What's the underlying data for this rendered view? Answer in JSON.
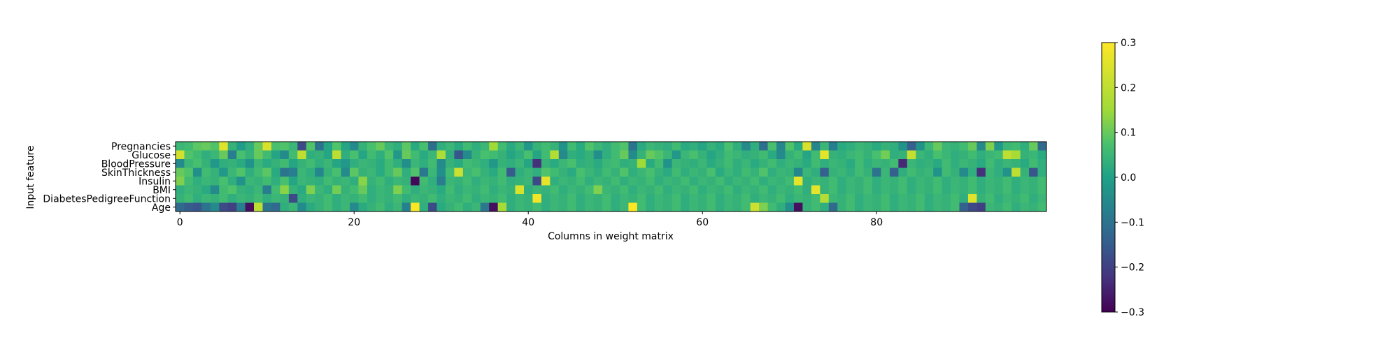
{
  "chart_data": {
    "type": "heatmap",
    "title": "",
    "xlabel": "Columns in weight matrix",
    "ylabel": "Input feature",
    "rows": [
      "Pregnancies",
      "Glucose",
      "BloodPressure",
      "SkinThickness",
      "Insulin",
      "BMI",
      "DiabetesPedigreeFunction",
      "Age"
    ],
    "n_columns": 100,
    "x_ticks": [
      0,
      20,
      40,
      60,
      80
    ],
    "x_tick_labels": [
      "0",
      "20",
      "40",
      "60",
      "80"
    ],
    "colormap": "viridis",
    "vmin": -0.3,
    "vmax": 0.3,
    "colorbar": {
      "ticks": [
        0.3,
        0.2,
        0.1,
        0.0,
        -0.1,
        -0.2,
        -0.3
      ],
      "tick_labels": [
        "0.3",
        "0.2",
        "0.1",
        "0.0",
        "−0.1",
        "−0.2",
        "−0.3"
      ]
    },
    "values": [
      [
        0.05,
        0.06,
        0.09,
        0.1,
        0.08,
        0.25,
        0.04,
        -0.01,
        0.03,
        0.1,
        0.24,
        0.07,
        0.08,
        0.05,
        -0.18,
        0.08,
        -0.1,
        0.01,
        0.08,
        0.01,
        -0.05,
        0.04,
        0.07,
        0.1,
        0.05,
        0.03,
        0.09,
        0.02,
        0.07,
        -0.11,
        0.03,
        0.05,
        0.02,
        0.06,
        0.03,
        0.05,
        0.15,
        0.06,
        0.02,
        0.05,
        -0.02,
        0.04,
        0.06,
        0.04,
        -0.03,
        0.06,
        0.02,
        0.08,
        0.05,
        0.03,
        0.06,
        0.08,
        -0.1,
        0.02,
        0.05,
        0.04,
        0.03,
        0.06,
        0.02,
        0.03,
        0.01,
        0.04,
        0.02,
        0.07,
        0.03,
        -0.05,
        0.03,
        -0.11,
        0.07,
        -0.06,
        0.08,
        0.02,
        0.24,
        -0.06,
        0.05,
        -0.08,
        0.02,
        0.03,
        0.05,
        0.04,
        0.02,
        0.04,
        0.03,
        -0.03,
        -0.14,
        -0.03,
        0.05,
        0.1,
        0.05,
        0.04,
        0.06,
        0.1,
        -0.05,
        0.12,
        -0.02,
        0.05,
        0.06,
        0.03,
        0.1,
        -0.12
      ],
      [
        0.23,
        0.08,
        0.06,
        0.03,
        0.05,
        0.1,
        -0.08,
        0.07,
        0.04,
        0.1,
        0.06,
        0.01,
        -0.05,
        0.06,
        0.2,
        0.03,
        0.04,
        0.01,
        0.2,
        0.03,
        0.07,
        0.01,
        0.06,
        0.03,
        0.08,
        -0.02,
        0.1,
        0.06,
        0.02,
        0.05,
        0.17,
        0.03,
        -0.16,
        -0.05,
        0.04,
        0.07,
        0.06,
        0.04,
        0.01,
        0.03,
        0.07,
        0.01,
        0.06,
        0.18,
        -0.05,
        0.03,
        0.02,
        0.04,
        -0.04,
        0.03,
        0.06,
        0.1,
        -0.05,
        0.04,
        0.1,
        0.08,
        0.05,
        -0.02,
        0.05,
        0.07,
        0.04,
        0.01,
        0.03,
        0.06,
        0.05,
        0.03,
        0.04,
        0.06,
        0.02,
        -0.05,
        0.04,
        0.06,
        0.01,
        0.06,
        0.26,
        0.04,
        0.03,
        0.05,
        0.06,
        0.04,
        0.07,
        0.11,
        0.03,
        0.04,
        0.21,
        0.05,
        0.03,
        0.07,
        0.05,
        0.03,
        0.04,
        0.06,
        0.03,
        0.05,
        0.06,
        0.2,
        0.16,
        0.04,
        0.05,
        0.02
      ],
      [
        -0.05,
        0.05,
        0.07,
        0.04,
        -0.02,
        0.03,
        0.04,
        0.02,
        -0.03,
        0.05,
        0.02,
        0.04,
        0.06,
        0.01,
        0.04,
        0.06,
        0.03,
        0.05,
        0.01,
        -0.02,
        0.03,
        0.05,
        0.04,
        0.02,
        0.06,
        0.03,
        -0.04,
        0.05,
        0.03,
        0.06,
        -0.05,
        0.04,
        0.02,
        0.06,
        0.05,
        0.03,
        -0.02,
        0.04,
        0.03,
        0.05,
        0.01,
        -0.23,
        0.04,
        0.02,
        0.05,
        0.07,
        0.03,
        0.04,
        0.02,
        0.05,
        0.06,
        0.03,
        0.04,
        0.15,
        0.02,
        0.06,
        -0.03,
        0.05,
        0.04,
        0.03,
        0.05,
        0.02,
        0.04,
        0.06,
        0.03,
        0.05,
        0.02,
        0.04,
        0.06,
        0.03,
        0.05,
        0.04,
        0.02,
        0.06,
        0.03,
        0.05,
        0.04,
        0.02,
        0.06,
        0.03,
        0.05,
        0.04,
        0.06,
        -0.24,
        0.05,
        0.03,
        0.04,
        0.02,
        0.06,
        0.03,
        0.05,
        0.04,
        0.02,
        0.06,
        0.03,
        0.05,
        0.04,
        0.02,
        0.06,
        0.03
      ],
      [
        0.1,
        0.08,
        -0.04,
        0.06,
        0.04,
        -0.02,
        0.05,
        0.08,
        0.03,
        0.06,
        0.09,
        0.02,
        -0.1,
        -0.08,
        0.05,
        0.03,
        -0.06,
        0.04,
        0.07,
        -0.05,
        0.09,
        0.04,
        0.05,
        0.02,
        0.06,
        0.1,
        0.03,
        0.08,
        -0.09,
        0.05,
        -0.04,
        0.06,
        0.22,
        0.05,
        0.07,
        0.04,
        0.02,
        0.06,
        -0.15,
        0.03,
        0.05,
        0.03,
        0.08,
        0.06,
        0.04,
        0.02,
        0.07,
        0.05,
        0.03,
        0.06,
        0.04,
        0.08,
        0.03,
        0.05,
        0.07,
        0.04,
        0.02,
        0.06,
        0.03,
        0.05,
        0.04,
        0.07,
        0.02,
        0.05,
        0.03,
        0.06,
        0.04,
        0.08,
        0.03,
        0.05,
        0.04,
        -0.06,
        0.05,
        0.03,
        -0.14,
        0.04,
        0.05,
        0.03,
        0.06,
        0.04,
        -0.1,
        0.05,
        -0.14,
        0.03,
        0.06,
        0.04,
        0.05,
        -0.03,
        0.06,
        0.04,
        -0.05,
        0.03,
        -0.23,
        0.05,
        0.03,
        -0.03,
        0.2,
        0.04,
        -0.16,
        0.03
      ],
      [
        0.12,
        0.06,
        0.03,
        0.05,
        0.04,
        0.07,
        0.03,
        -0.03,
        0.05,
        0.04,
        0.06,
        0.03,
        0.07,
        0.01,
        0.05,
        0.04,
        0.03,
        0.06,
        0.04,
        0.05,
        0.03,
        0.13,
        0.04,
        0.06,
        0.03,
        0.05,
        0.04,
        -0.29,
        0.06,
        0.03,
        -0.08,
        0.05,
        0.04,
        0.06,
        0.03,
        0.05,
        0.04,
        0.06,
        0.03,
        0.04,
        0.05,
        -0.18,
        0.26,
        0.03,
        0.05,
        0.04,
        0.06,
        0.03,
        0.05,
        0.04,
        0.06,
        0.03,
        0.05,
        0.04,
        0.06,
        0.03,
        0.05,
        0.04,
        0.06,
        0.03,
        0.05,
        0.04,
        0.06,
        0.03,
        0.05,
        0.04,
        0.06,
        0.03,
        0.05,
        0.04,
        0.06,
        0.26,
        0.03,
        0.05,
        0.04,
        0.06,
        0.03,
        0.05,
        0.04,
        0.06,
        0.03,
        0.05,
        0.04,
        0.06,
        0.03,
        0.05,
        0.04,
        0.06,
        0.03,
        0.05,
        0.04,
        0.06,
        0.03,
        0.05,
        0.04,
        0.06,
        0.03,
        0.05,
        0.04,
        0.06
      ],
      [
        0.03,
        0.05,
        0.04,
        0.02,
        -0.05,
        0.06,
        0.08,
        0.04,
        0.03,
        0.05,
        -0.08,
        0.06,
        0.13,
        0.04,
        0.02,
        0.12,
        0.05,
        0.03,
        0.11,
        0.04,
        0.06,
        0.1,
        0.03,
        0.05,
        0.04,
        0.12,
        0.06,
        0.03,
        0.05,
        0.04,
        0.02,
        0.06,
        0.03,
        0.05,
        0.04,
        0.06,
        0.03,
        0.05,
        0.04,
        0.24,
        0.03,
        0.05,
        0.04,
        0.06,
        0.03,
        0.05,
        0.04,
        0.06,
        0.12,
        0.05,
        0.04,
        0.06,
        0.03,
        0.05,
        0.04,
        0.06,
        0.03,
        0.05,
        0.04,
        0.06,
        0.03,
        0.05,
        0.04,
        0.06,
        0.03,
        0.05,
        0.04,
        0.06,
        0.03,
        0.05,
        0.04,
        0.06,
        0.03,
        0.26,
        0.04,
        0.06,
        0.03,
        0.05,
        0.04,
        0.06,
        0.03,
        0.05,
        0.04,
        0.06,
        0.03,
        0.05,
        0.04,
        0.06,
        0.03,
        0.05,
        0.04,
        0.06,
        0.03,
        0.05,
        0.04,
        0.06,
        0.03,
        0.05,
        0.04,
        0.06
      ],
      [
        0.04,
        0.06,
        0.03,
        0.05,
        0.04,
        0.06,
        0.03,
        0.05,
        0.04,
        0.06,
        0.03,
        0.05,
        0.04,
        -0.18,
        0.03,
        0.05,
        0.04,
        0.06,
        0.03,
        0.05,
        0.04,
        0.06,
        0.03,
        0.05,
        0.04,
        0.06,
        0.03,
        0.05,
        0.04,
        0.06,
        0.03,
        0.05,
        0.04,
        0.06,
        0.03,
        0.05,
        0.04,
        0.06,
        0.03,
        0.05,
        0.04,
        0.28,
        0.03,
        0.05,
        0.04,
        0.06,
        0.03,
        0.05,
        0.04,
        0.06,
        0.03,
        0.05,
        0.04,
        0.06,
        0.03,
        0.05,
        0.04,
        0.06,
        0.03,
        0.05,
        0.04,
        0.06,
        0.03,
        0.05,
        0.04,
        0.06,
        0.03,
        0.05,
        0.04,
        0.06,
        0.03,
        0.05,
        0.04,
        0.06,
        0.18,
        0.05,
        0.04,
        0.06,
        0.03,
        0.05,
        0.04,
        0.06,
        0.03,
        0.05,
        0.04,
        0.06,
        0.03,
        0.05,
        0.04,
        0.06,
        0.03,
        0.25,
        0.04,
        0.06,
        0.03,
        0.05,
        0.04,
        0.06,
        0.03,
        0.05
      ],
      [
        -0.12,
        -0.15,
        -0.16,
        -0.1,
        -0.05,
        -0.18,
        -0.2,
        -0.08,
        -0.28,
        0.2,
        -0.1,
        -0.12,
        0.03,
        0.05,
        -0.05,
        0.02,
        0.04,
        0.06,
        0.03,
        0.05,
        -0.05,
        0.02,
        0.04,
        0.06,
        0.03,
        0.05,
        -0.07,
        0.3,
        0.03,
        -0.18,
        0.02,
        0.04,
        0.06,
        0.03,
        0.05,
        -0.09,
        -0.28,
        0.16,
        0.03,
        0.05,
        0.04,
        0.06,
        0.03,
        0.05,
        0.04,
        0.06,
        0.03,
        0.05,
        0.04,
        0.06,
        0.03,
        0.05,
        0.3,
        0.06,
        0.03,
        0.05,
        0.04,
        0.06,
        0.03,
        0.05,
        0.04,
        0.06,
        0.03,
        0.05,
        0.04,
        0.06,
        0.22,
        0.12,
        0.06,
        0.03,
        -0.04,
        -0.28,
        0.04,
        0.06,
        0.03,
        -0.12,
        0.04,
        0.06,
        0.03,
        0.05,
        0.04,
        0.06,
        0.03,
        0.05,
        0.04,
        0.06,
        0.03,
        0.05,
        0.04,
        0.06,
        -0.14,
        -0.18,
        -0.2,
        0.05,
        0.04,
        0.06,
        0.03,
        0.05,
        0.04,
        0.06
      ]
    ]
  }
}
